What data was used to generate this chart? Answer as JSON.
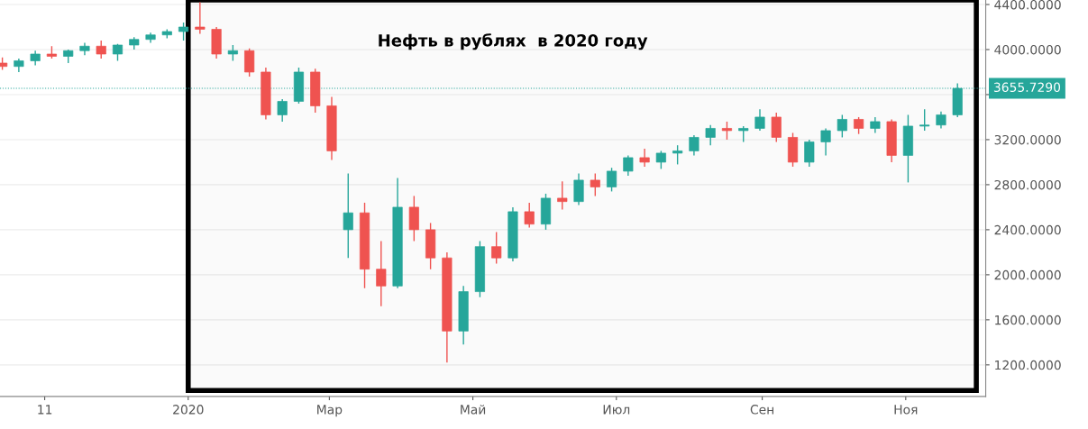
{
  "chart_data": {
    "type": "candlestick",
    "title": "Нефть в рублях  в 2020 году",
    "x": [
      "2019-10-14",
      "2019-10-21",
      "2019-10-28",
      "2019-11-04",
      "2019-11-11",
      "2019-11-18",
      "2019-11-25",
      "2019-12-02",
      "2019-12-09",
      "2019-12-16",
      "2019-12-23",
      "2019-12-30",
      "2020-01-06",
      "2020-01-13",
      "2020-01-20",
      "2020-01-27",
      "2020-02-03",
      "2020-02-10",
      "2020-02-17",
      "2020-02-24",
      "2020-03-02",
      "2020-03-09",
      "2020-03-16",
      "2020-03-23",
      "2020-03-30",
      "2020-04-06",
      "2020-04-13",
      "2020-04-20",
      "2020-04-27",
      "2020-05-04",
      "2020-05-11",
      "2020-05-18",
      "2020-05-25",
      "2020-06-01",
      "2020-06-08",
      "2020-06-15",
      "2020-06-22",
      "2020-06-29",
      "2020-07-06",
      "2020-07-13",
      "2020-07-20",
      "2020-07-27",
      "2020-08-03",
      "2020-08-10",
      "2020-08-17",
      "2020-08-24",
      "2020-08-31",
      "2020-09-07",
      "2020-09-14",
      "2020-09-21",
      "2020-09-28",
      "2020-10-05",
      "2020-10-12",
      "2020-10-19",
      "2020-10-26",
      "2020-11-02",
      "2020-11-09",
      "2020-11-16",
      "2020-11-23"
    ],
    "ohlc": [
      [
        3880,
        3930,
        3820,
        3850
      ],
      [
        3850,
        3920,
        3800,
        3900
      ],
      [
        3900,
        3990,
        3860,
        3960
      ],
      [
        3960,
        4030,
        3920,
        3940
      ],
      [
        3940,
        4000,
        3880,
        3990
      ],
      [
        3990,
        4060,
        3950,
        4030
      ],
      [
        4030,
        4080,
        3920,
        3960
      ],
      [
        3960,
        4050,
        3900,
        4040
      ],
      [
        4040,
        4110,
        4000,
        4090
      ],
      [
        4090,
        4150,
        4060,
        4130
      ],
      [
        4130,
        4180,
        4100,
        4160
      ],
      [
        4160,
        4240,
        4080,
        4200
      ],
      [
        4200,
        4420,
        4140,
        4180
      ],
      [
        4180,
        4200,
        3920,
        3960
      ],
      [
        3960,
        4040,
        3900,
        3990
      ],
      [
        3990,
        4010,
        3760,
        3800
      ],
      [
        3800,
        3840,
        3380,
        3420
      ],
      [
        3420,
        3560,
        3360,
        3540
      ],
      [
        3540,
        3840,
        3520,
        3800
      ],
      [
        3800,
        3830,
        3440,
        3500
      ],
      [
        3500,
        3580,
        3020,
        3100
      ],
      [
        2400,
        2900,
        2150,
        2550
      ],
      [
        2550,
        2640,
        1880,
        2050
      ],
      [
        2050,
        2300,
        1720,
        1900
      ],
      [
        1900,
        2860,
        1880,
        2600
      ],
      [
        2600,
        2700,
        2300,
        2400
      ],
      [
        2400,
        2460,
        2050,
        2150
      ],
      [
        2150,
        2200,
        1220,
        1500
      ],
      [
        1500,
        1900,
        1380,
        1850
      ],
      [
        1850,
        2300,
        1800,
        2250
      ],
      [
        2250,
        2380,
        2100,
        2150
      ],
      [
        2150,
        2600,
        2120,
        2560
      ],
      [
        2560,
        2640,
        2420,
        2450
      ],
      [
        2450,
        2720,
        2400,
        2680
      ],
      [
        2680,
        2830,
        2580,
        2650
      ],
      [
        2650,
        2900,
        2620,
        2840
      ],
      [
        2840,
        2900,
        2700,
        2780
      ],
      [
        2780,
        2950,
        2740,
        2920
      ],
      [
        2920,
        3060,
        2880,
        3040
      ],
      [
        3040,
        3120,
        2960,
        3000
      ],
      [
        3000,
        3100,
        2940,
        3080
      ],
      [
        3080,
        3150,
        2980,
        3100
      ],
      [
        3100,
        3240,
        3060,
        3220
      ],
      [
        3220,
        3330,
        3150,
        3300
      ],
      [
        3300,
        3360,
        3200,
        3280
      ],
      [
        3280,
        3320,
        3180,
        3300
      ],
      [
        3300,
        3470,
        3280,
        3400
      ],
      [
        3400,
        3440,
        3180,
        3220
      ],
      [
        3220,
        3260,
        2960,
        3000
      ],
      [
        3000,
        3200,
        2960,
        3180
      ],
      [
        3180,
        3300,
        3060,
        3280
      ],
      [
        3280,
        3420,
        3220,
        3380
      ],
      [
        3380,
        3400,
        3250,
        3300
      ],
      [
        3300,
        3400,
        3260,
        3360
      ],
      [
        3360,
        3380,
        3000,
        3060
      ],
      [
        3060,
        3420,
        2820,
        3320
      ],
      [
        3320,
        3470,
        3280,
        3330
      ],
      [
        3330,
        3450,
        3300,
        3420
      ],
      [
        3420,
        3700,
        3400,
        3655.729
      ]
    ],
    "colors": [
      "#ef5350",
      "#26a69a",
      "#26a69a",
      "#ef5350",
      "#26a69a",
      "#26a69a",
      "#ef5350",
      "#26a69a",
      "#26a69a",
      "#26a69a",
      "#26a69a",
      "#26a69a",
      "#ef5350",
      "#ef5350",
      "#26a69a",
      "#ef5350",
      "#ef5350",
      "#26a69a",
      "#26a69a",
      "#ef5350",
      "#ef5350",
      "#26a69a",
      "#ef5350",
      "#ef5350",
      "#26a69a",
      "#ef5350",
      "#ef5350",
      "#ef5350",
      "#26a69a",
      "#26a69a",
      "#ef5350",
      "#26a69a",
      "#ef5350",
      "#26a69a",
      "#ef5350",
      "#26a69a",
      "#ef5350",
      "#26a69a",
      "#26a69a",
      "#ef5350",
      "#26a69a",
      "#26a69a",
      "#26a69a",
      "#26a69a",
      "#ef5350",
      "#26a69a",
      "#26a69a",
      "#ef5350",
      "#ef5350",
      "#26a69a",
      "#26a69a",
      "#26a69a",
      "#ef5350",
      "#26a69a",
      "#ef5350",
      "#26a69a",
      "#26a69a",
      "#26a69a",
      "#26a69a"
    ],
    "xlim": [
      "2019-10-13",
      "2020-12-05"
    ],
    "xticks": [
      {
        "value": "2019-11-01",
        "label": "11"
      },
      {
        "value": "2020-01-01",
        "label": "2020"
      },
      {
        "value": "2020-03-01",
        "label": "Мар"
      },
      {
        "value": "2020-05-01",
        "label": "Май"
      },
      {
        "value": "2020-07-01",
        "label": "Июл"
      },
      {
        "value": "2020-09-01",
        "label": "Сен"
      },
      {
        "value": "2020-11-01",
        "label": "Ноя"
      }
    ],
    "ylim": [
      920,
      4440
    ],
    "yticks": [
      {
        "value": 1200,
        "label": "1200.0000"
      },
      {
        "value": 1600,
        "label": "1600.0000"
      },
      {
        "value": 2000,
        "label": "2000.0000"
      },
      {
        "value": 2400,
        "label": "2400.0000"
      },
      {
        "value": 2800,
        "label": "2800.0000"
      },
      {
        "value": 3200,
        "label": "3200.0000"
      },
      {
        "value": 3600,
        "label": null
      },
      {
        "value": 4000,
        "label": "4000.0000"
      },
      {
        "value": 4400,
        "label": "4400.0000"
      }
    ],
    "ref_lines": [
      {
        "axis": "y",
        "value": 3655.729,
        "label": "3655.7290",
        "color": "#26a69a",
        "line_style": "dotted"
      }
    ],
    "bands": [
      {
        "axis": "x",
        "from": "2020-01-01",
        "to": "2020-12-01",
        "color": "#000000"
      }
    ],
    "grid": "y"
  }
}
